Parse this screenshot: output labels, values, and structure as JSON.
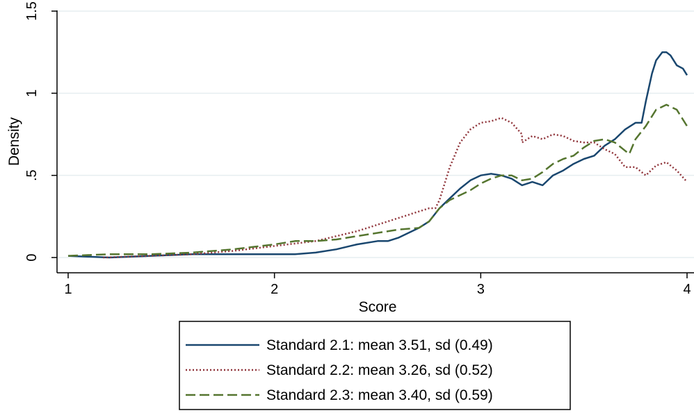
{
  "chart_data": {
    "type": "line",
    "xlabel": "Score",
    "ylabel": "Density",
    "xlim": [
      1,
      4
    ],
    "ylim": [
      0,
      1.5
    ],
    "x_ticks": [
      1,
      2,
      3,
      4
    ],
    "x_tick_labels": [
      "1",
      "2",
      "3",
      "4"
    ],
    "y_ticks": [
      0,
      0.5,
      1,
      1.5
    ],
    "y_tick_labels": [
      "0",
      ".5",
      "1",
      "1.5"
    ],
    "grid": "horizontal",
    "legend_position": "bottom",
    "series": [
      {
        "name": "Standard 2.1: mean 3.51, sd (0.49)",
        "color": "#1a476f",
        "dash": "solid",
        "x": [
          1.0,
          1.2,
          1.4,
          1.6,
          1.8,
          2.0,
          2.1,
          2.2,
          2.3,
          2.4,
          2.5,
          2.55,
          2.6,
          2.7,
          2.75,
          2.8,
          2.85,
          2.9,
          2.95,
          3.0,
          3.05,
          3.1,
          3.15,
          3.2,
          3.25,
          3.3,
          3.35,
          3.4,
          3.45,
          3.5,
          3.55,
          3.6,
          3.65,
          3.7,
          3.75,
          3.78,
          3.8,
          3.83,
          3.85,
          3.88,
          3.9,
          3.92,
          3.95,
          3.98,
          4.0
        ],
        "y": [
          0.01,
          0.0,
          0.01,
          0.02,
          0.02,
          0.02,
          0.02,
          0.03,
          0.05,
          0.08,
          0.1,
          0.1,
          0.12,
          0.18,
          0.22,
          0.3,
          0.36,
          0.42,
          0.47,
          0.5,
          0.51,
          0.5,
          0.48,
          0.44,
          0.46,
          0.44,
          0.5,
          0.53,
          0.57,
          0.6,
          0.62,
          0.68,
          0.72,
          0.78,
          0.82,
          0.82,
          0.95,
          1.12,
          1.2,
          1.25,
          1.25,
          1.23,
          1.17,
          1.15,
          1.11
        ]
      },
      {
        "name": "Standard 2.2: mean 3.26, sd (0.52)",
        "color": "#90353b",
        "dash": "dotted",
        "x": [
          1.17,
          1.4,
          1.6,
          1.8,
          2.0,
          2.2,
          2.4,
          2.5,
          2.6,
          2.7,
          2.75,
          2.78,
          2.8,
          2.85,
          2.9,
          2.95,
          3.0,
          3.05,
          3.1,
          3.15,
          3.2,
          3.2,
          3.25,
          3.3,
          3.35,
          3.4,
          3.45,
          3.5,
          3.55,
          3.6,
          3.65,
          3.7,
          3.75,
          3.8,
          3.85,
          3.9,
          3.95,
          4.0
        ],
        "y": [
          0.0,
          0.01,
          0.02,
          0.04,
          0.07,
          0.1,
          0.16,
          0.2,
          0.24,
          0.28,
          0.3,
          0.3,
          0.35,
          0.55,
          0.7,
          0.78,
          0.82,
          0.83,
          0.85,
          0.82,
          0.75,
          0.7,
          0.74,
          0.72,
          0.75,
          0.74,
          0.71,
          0.7,
          0.7,
          0.66,
          0.63,
          0.55,
          0.55,
          0.5,
          0.56,
          0.58,
          0.53,
          0.46
        ]
      },
      {
        "name": "Standard 2.3: mean 3.40, sd (0.59)",
        "color": "#55752f",
        "dash": "dashed",
        "x": [
          1.0,
          1.2,
          1.4,
          1.6,
          1.8,
          2.0,
          2.1,
          2.2,
          2.3,
          2.4,
          2.5,
          2.6,
          2.7,
          2.75,
          2.8,
          2.85,
          2.9,
          2.95,
          3.0,
          3.05,
          3.1,
          3.15,
          3.2,
          3.25,
          3.3,
          3.35,
          3.4,
          3.45,
          3.5,
          3.55,
          3.6,
          3.65,
          3.7,
          3.72,
          3.75,
          3.8,
          3.85,
          3.9,
          3.95,
          4.0
        ],
        "y": [
          0.01,
          0.02,
          0.02,
          0.03,
          0.05,
          0.08,
          0.1,
          0.1,
          0.11,
          0.13,
          0.15,
          0.17,
          0.18,
          0.22,
          0.3,
          0.35,
          0.38,
          0.41,
          0.45,
          0.48,
          0.5,
          0.5,
          0.47,
          0.48,
          0.52,
          0.57,
          0.6,
          0.62,
          0.67,
          0.71,
          0.72,
          0.7,
          0.65,
          0.63,
          0.72,
          0.8,
          0.9,
          0.93,
          0.9,
          0.8
        ]
      }
    ]
  }
}
